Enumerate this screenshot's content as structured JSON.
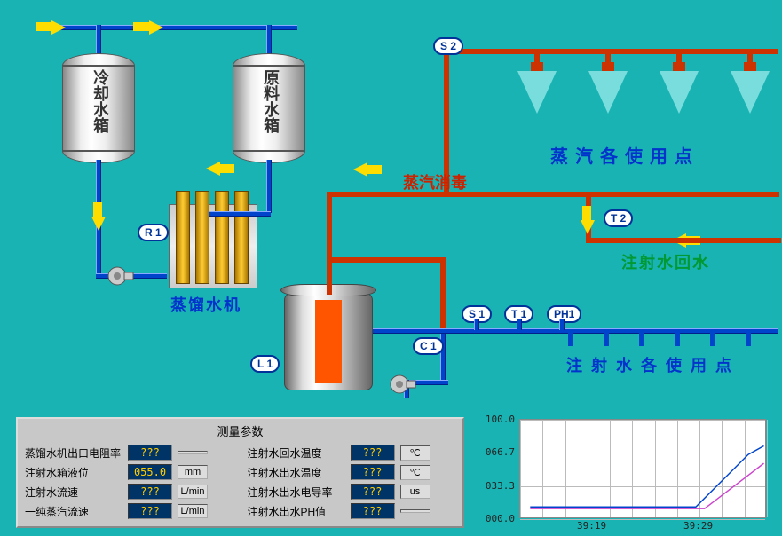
{
  "colors": {
    "bg": "#1ab3b3",
    "pipe_blue": "#0044cc",
    "pipe_red": "#cc3300",
    "arrow": "#ffdd00",
    "sensor_border": "#003399",
    "text_blue": "#0033cc",
    "text_red": "#cc2200",
    "text_green": "#009933",
    "panel_bg": "#c8c8c8",
    "val_bg": "#003366",
    "val_fg": "#ffcc00"
  },
  "tanks": {
    "cooling": {
      "label": "冷却水箱"
    },
    "raw": {
      "label": "原料水箱"
    }
  },
  "labels": {
    "steam_disinfect": "蒸汽消毒",
    "steam_points": "蒸汽各使用点",
    "inject_return": "注射水回水",
    "inject_points": "注射水各使用点",
    "distiller": "蒸馏水机"
  },
  "sensors": {
    "r1": "R 1",
    "l1": "L 1",
    "s1": "S 1",
    "s2": "S 2",
    "t1": "T 1",
    "t2": "T 2",
    "c1": "C 1",
    "ph1": "PH1"
  },
  "panel": {
    "title": "测量参数",
    "rows_left": [
      {
        "label": "蒸馏水机出口电阻率",
        "value": "???",
        "unit": ""
      },
      {
        "label": "注射水箱液位",
        "value": "055.0",
        "unit": "mm"
      },
      {
        "label": "注射水流速",
        "value": "???",
        "unit": "L/min"
      },
      {
        "label": "一纯蒸汽流速",
        "value": "???",
        "unit": "L/min"
      }
    ],
    "rows_right": [
      {
        "label": "注射水回水温度",
        "value": "???",
        "unit": "℃"
      },
      {
        "label": "注射水出水温度",
        "value": "???",
        "unit": "℃"
      },
      {
        "label": "注射水出水电导率",
        "value": "???",
        "unit": "us"
      },
      {
        "label": "注射水出水PH值",
        "value": "???",
        "unit": ""
      }
    ]
  },
  "chart": {
    "y_ticks": [
      "100.0",
      "066.7",
      "033.3",
      "000.0"
    ],
    "x_ticks": [
      "39:19",
      "39:29"
    ],
    "ylim": [
      0,
      100
    ],
    "grid_color": "#bbbbbb",
    "line_color_blue": "#0044cc",
    "line_color_purple": "#cc44cc"
  }
}
